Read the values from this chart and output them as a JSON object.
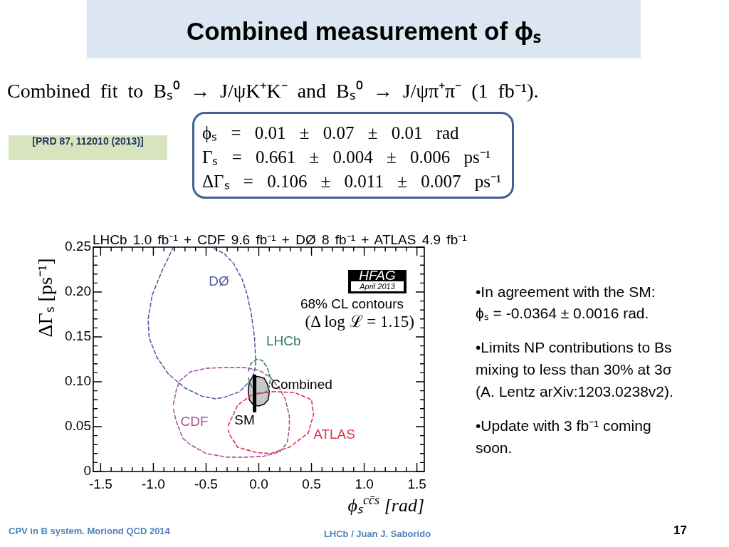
{
  "chart_data": {
    "type": "line",
    "title": "Combined measurement of ϕₛ",
    "subtitle": "LHCb 1.0 fb⁻¹ + CDF 9.6 fb⁻¹ + DØ 8 fb⁻¹ + ATLAS 4.9 fb⁻¹",
    "xlabel": "ϕₛ$^{cc̄s}$ [rad]",
    "ylabel": "ΔΓₛ [ps⁻¹]",
    "xlim": [
      -1.57,
      1.57
    ],
    "ylim": [
      0,
      0.25
    ],
    "xticks": [
      -1.5,
      {
        "value": -1.4,
        "label": null
      },
      {
        "value": -1.3,
        "label": null
      },
      {
        "value": -1.2,
        "label": null
      },
      {
        "value": -1.1,
        "label": null
      },
      {
        "value": -1,
        "label": "-1.0"
      },
      {
        "value": -0.9,
        "label": null
      },
      {
        "value": -0.8,
        "label": null
      },
      {
        "value": -0.7,
        "label": null
      },
      {
        "value": -0.6,
        "label": null
      },
      -0.5,
      {
        "value": -0.4,
        "label": null
      },
      {
        "value": -0.3,
        "label": null
      },
      {
        "value": -0.2,
        "label": null
      },
      {
        "value": -0.1,
        "label": null
      },
      {
        "value": 0,
        "label": "0.0"
      },
      {
        "value": 0.1,
        "label": null
      },
      {
        "value": 0.2,
        "label": null
      },
      {
        "value": 0.3,
        "label": null
      },
      {
        "value": 0.4,
        "label": null
      },
      0.5,
      {
        "value": 0.6,
        "label": null
      },
      {
        "value": 0.7,
        "label": null
      },
      {
        "value": 0.8,
        "label": null
      },
      {
        "value": 0.9,
        "label": null
      },
      {
        "value": 1,
        "label": "1.0"
      },
      {
        "value": 1.1,
        "label": null
      },
      {
        "value": 1.2,
        "label": null
      },
      {
        "value": 1.3,
        "label": null
      },
      {
        "value": 1.4,
        "label": null
      },
      1.5
    ],
    "yticks": [
      0,
      {
        "value": 0.01,
        "label": null
      },
      {
        "value": 0.02,
        "label": null
      },
      {
        "value": 0.03,
        "label": null
      },
      {
        "value": 0.04,
        "label": null
      },
      0.05,
      {
        "value": 0.06,
        "label": null
      },
      {
        "value": 0.07,
        "label": null
      },
      {
        "value": 0.08,
        "label": null
      },
      {
        "value": 0.09,
        "label": null
      },
      {
        "value": 0.1,
        "label": "0.10"
      },
      {
        "value": 0.11,
        "label": null
      },
      {
        "value": 0.12,
        "label": null
      },
      {
        "value": 0.13,
        "label": null
      },
      {
        "value": 0.14,
        "label": null
      },
      0.15,
      {
        "value": 0.16,
        "label": null
      },
      {
        "value": 0.17,
        "label": null
      },
      {
        "value": 0.18,
        "label": null
      },
      {
        "value": 0.19,
        "label": null
      },
      {
        "value": 0.2,
        "label": "0.20"
      },
      {
        "value": 0.21,
        "label": null
      },
      {
        "value": 0.22,
        "label": null
      },
      {
        "value": 0.23,
        "label": null
      },
      {
        "value": 0.24,
        "label": null
      },
      0.25
    ],
    "marker": "none",
    "line_style": "dashed",
    "series": [
      {
        "name": "DØ",
        "color": "#5a5aa5",
        "x": [
          -0.81,
          -0.92,
          -1.01,
          -1.05,
          -1.04,
          -0.97,
          -0.86,
          -0.7,
          -0.54,
          -0.41,
          -0.32,
          -0.18,
          -0.09,
          -0.05,
          -0.03,
          -0.03,
          -0.04,
          -0.07,
          -0.11,
          -0.16,
          -0.24,
          -0.33,
          -0.45
        ],
        "values": [
          0.25,
          0.223,
          0.197,
          0.17,
          0.149,
          0.128,
          0.109,
          0.093,
          0.084,
          0.081,
          0.083,
          0.089,
          0.1,
          0.108,
          0.118,
          0.125,
          0.149,
          0.175,
          0.197,
          0.215,
          0.232,
          0.243,
          0.25
        ]
      },
      {
        "name": "CDF",
        "color": "#a8509c",
        "x": [
          -0.81,
          -0.78,
          -0.75,
          -0.65,
          -0.5,
          -0.3,
          -0.15,
          0.0,
          0.11,
          0.2,
          0.25,
          0.29,
          0.29,
          0.27,
          0.2,
          0.05,
          -0.1,
          -0.3,
          -0.5,
          -0.65,
          -0.72,
          -0.78,
          -0.8,
          -0.81
        ],
        "values": [
          0.075,
          0.092,
          0.101,
          0.111,
          0.115,
          0.116,
          0.116,
          0.113,
          0.105,
          0.092,
          0.081,
          0.062,
          0.049,
          0.032,
          0.022,
          0.017,
          0.016,
          0.016,
          0.02,
          0.03,
          0.037,
          0.055,
          0.064,
          0.07
        ]
      },
      {
        "name": "ATLAS",
        "color": "#e03050",
        "x": [
          -0.29,
          -0.2,
          -0.07,
          0.0,
          0.14,
          0.34,
          0.5,
          0.52,
          0.47,
          0.29,
          0.11,
          -0.02,
          -0.2,
          -0.27,
          -0.29
        ],
        "values": [
          0.051,
          0.074,
          0.085,
          0.087,
          0.089,
          0.088,
          0.08,
          0.064,
          0.043,
          0.027,
          0.02,
          0.021,
          0.027,
          0.04,
          0.046
        ]
      },
      {
        "name": "LHCb",
        "color": "#2f7d5c",
        "x": [
          -0.1,
          -0.07,
          -0.02,
          0.03,
          0.08,
          0.11,
          0.1,
          0.06,
          0.0,
          -0.05,
          -0.09,
          -0.1
        ],
        "values": [
          0.112,
          0.121,
          0.125,
          0.124,
          0.116,
          0.104,
          0.094,
          0.088,
          0.087,
          0.091,
          0.1,
          0.107
        ]
      },
      {
        "name": "Combined",
        "color": "#c8c8c8",
        "type": "area",
        "line_style": "solid",
        "x": [
          -0.1,
          -0.09,
          -0.06,
          -0.01,
          0.05,
          0.08,
          0.1,
          0.09,
          0.05,
          0.0,
          -0.05,
          -0.09,
          -0.1
        ],
        "values": [
          0.09,
          0.099,
          0.105,
          0.106,
          0.104,
          0.098,
          0.089,
          0.08,
          0.075,
          0.073,
          0.074,
          0.08,
          0.09
        ]
      },
      {
        "name": "SM",
        "color": "#000000",
        "line_style": "solid",
        "x": [
          -0.04,
          -0.04
        ],
        "values": [
          0.066,
          0.108
        ]
      }
    ],
    "annotations": [
      "Combined fit to Bₛ⁰ → J/ψK⁺K⁻ and Bₛ⁰ → J/ψπ⁺π⁻ (1 fb⁻¹).",
      "[PRD 87, 112010 (2013)]",
      "ϕₛ = 0.01 ± 0.07 ± 0.01 rad",
      "Γₛ = 0.661 ± 0.004 ± 0.006 ps⁻¹",
      "ΔΓₛ = 0.106 ± 0.011 ± 0.007 ps⁻¹",
      "HFAG",
      "April 2013",
      "68% CL contours",
      "(Δ log ℒ = 1.15)",
      "•In agreement with the SM:",
      "ϕₛ = -0.0364 ± 0.0016 rad.",
      "•Limits NP contributions to Bs mixing to less than 30% at 3σ (A. Lentz arXiv:1203.0238v2).",
      "•Update with 3 fb⁻¹ coming soon.",
      "CPV in B system. Moriond QCD 2014",
      "LHCb / Juan J. Saborido",
      "17"
    ]
  }
}
